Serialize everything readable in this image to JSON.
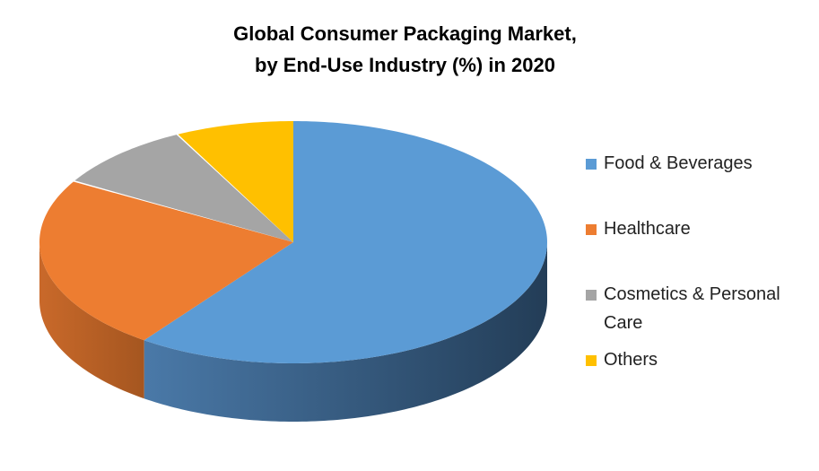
{
  "chart_data": {
    "type": "pie",
    "style": "3d",
    "title": [
      "Global Consumer Packaging Market,",
      "by End-Use Industry  (%) in 2020"
    ],
    "categories": [
      "Food & Beverages",
      "Healthcare",
      "Cosmetics & Personal Care",
      "Others"
    ],
    "values": [
      60,
      23.5,
      9,
      7.5
    ],
    "colors": [
      "#5B9BD5",
      "#ED7D31",
      "#A5A5A5",
      "#FFC000"
    ],
    "side_colors": [
      [
        "#4a79a8",
        "#233d57"
      ],
      [
        "#c9692a",
        "#a55620"
      ],
      [
        "#8a8a8a",
        "#6e6e6e"
      ],
      [
        "#d8a300",
        "#b38700"
      ]
    ],
    "legend_position": "right",
    "legend": [
      "Food & Beverages",
      "Healthcare",
      "Cosmetics & Personal",
      "Care",
      "Others"
    ]
  }
}
